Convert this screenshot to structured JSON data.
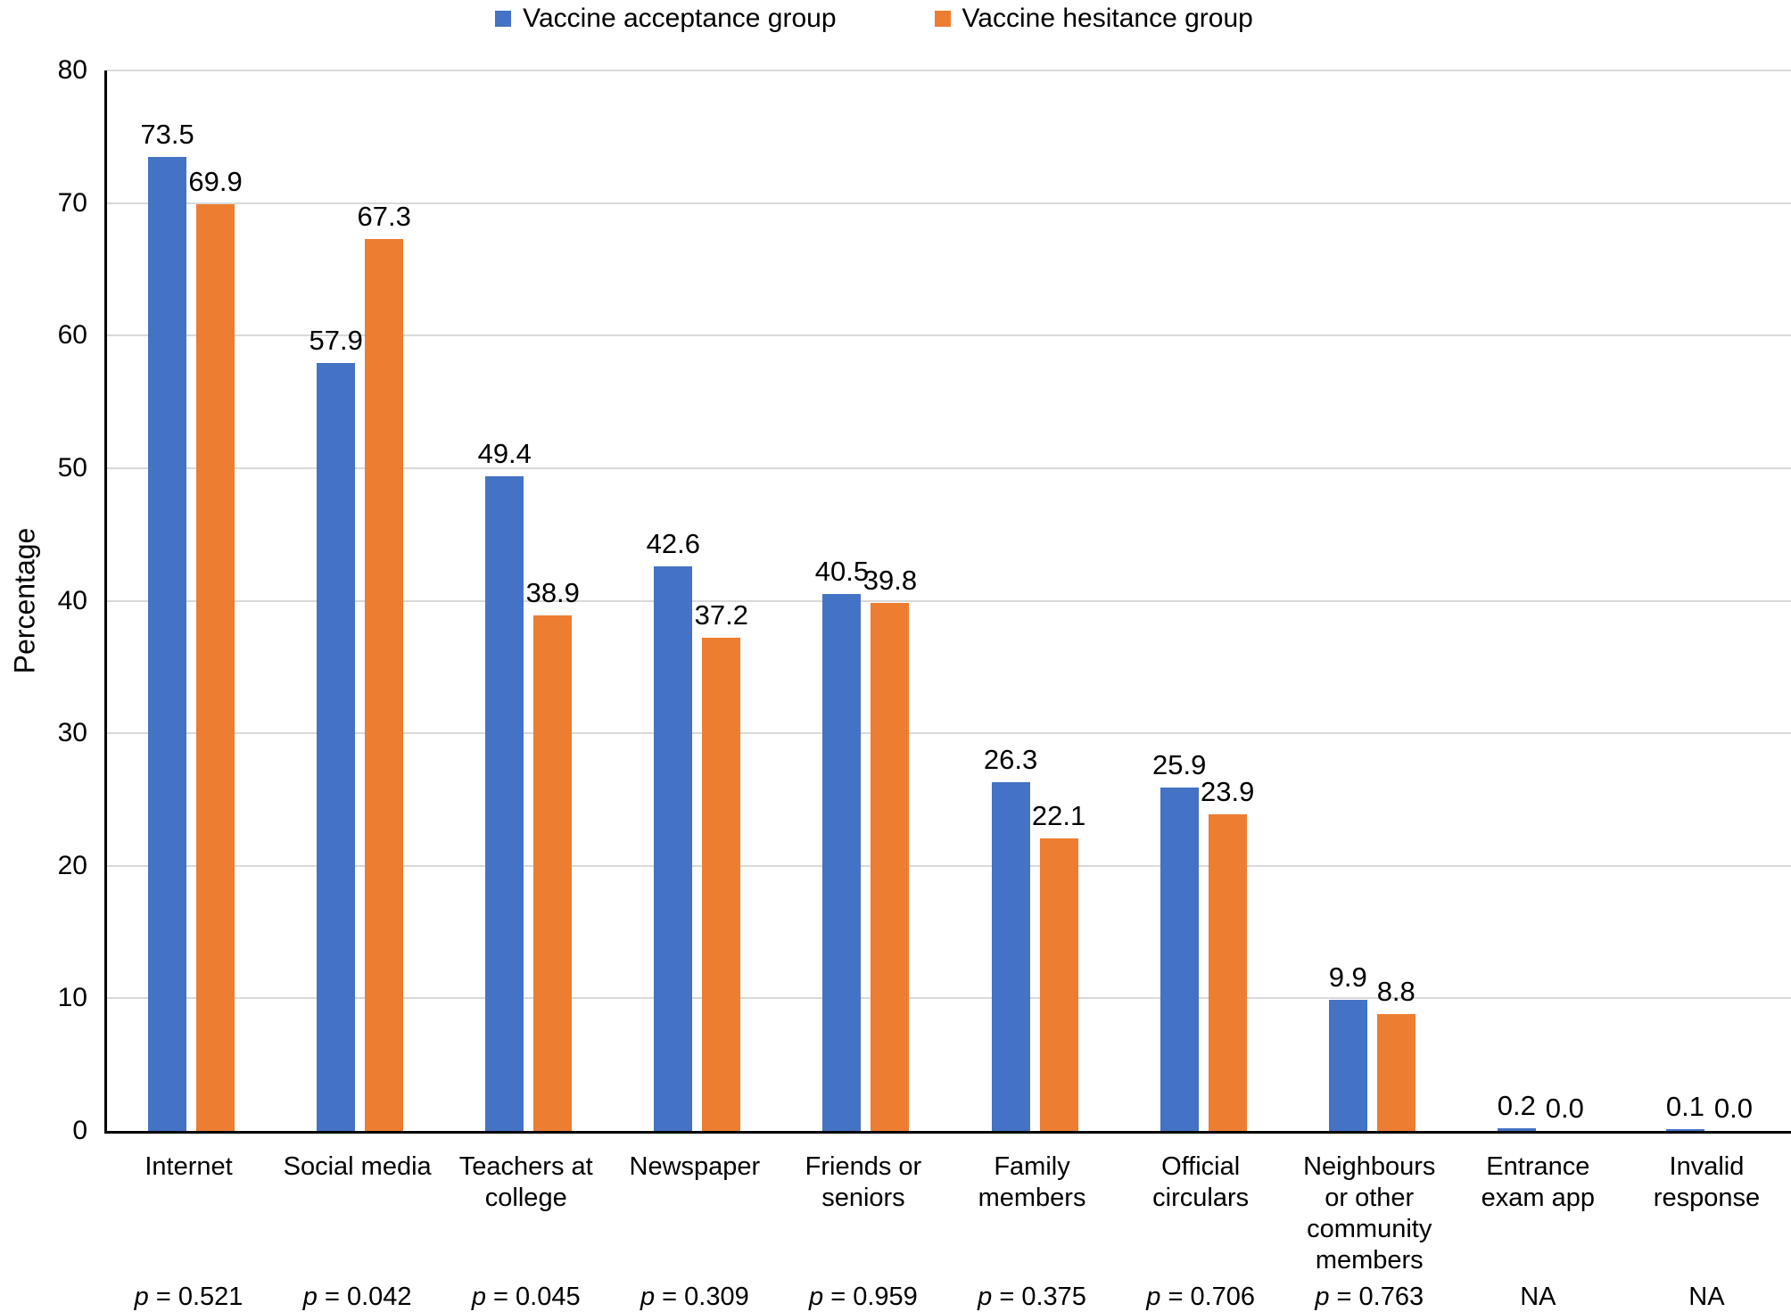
{
  "chart_data": {
    "type": "bar",
    "title": "",
    "xlabel": "",
    "ylabel": "Percentage",
    "ylim": [
      0,
      80
    ],
    "yticks": [
      0,
      10,
      20,
      30,
      40,
      50,
      60,
      70,
      80
    ],
    "grid": "horizontal",
    "legend_position": "top-center",
    "categories": [
      "Internet",
      "Social media",
      "Teachers at college",
      "Newspaper",
      "Friends or seniors",
      "Family members",
      "Official circulars",
      "Neighbours or other community members",
      "Entrance exam app",
      "Invalid response"
    ],
    "category_label_lines": [
      [
        "Internet"
      ],
      [
        "Social media"
      ],
      [
        "Teachers at",
        "college"
      ],
      [
        "Newspaper"
      ],
      [
        "Friends or",
        "seniors"
      ],
      [
        "Family",
        "members"
      ],
      [
        "Official",
        "circulars"
      ],
      [
        "Neighbours",
        "or other",
        "community",
        "members"
      ],
      [
        "Entrance",
        "exam app"
      ],
      [
        "Invalid",
        "response"
      ]
    ],
    "p_values": [
      "p = 0.521",
      "p = 0.042",
      "p = 0.045",
      "p = 0.309",
      "p = 0.959",
      "p = 0.375",
      "p = 0.706",
      "p = 0.763",
      "NA",
      "NA"
    ],
    "series": [
      {
        "name": "Vaccine acceptance group",
        "color": "#4472C4",
        "values": [
          73.5,
          57.9,
          49.4,
          42.6,
          40.5,
          26.3,
          25.9,
          9.9,
          0.2,
          0.1
        ]
      },
      {
        "name": "Vaccine hesitance group",
        "color": "#ED7D31",
        "values": [
          69.9,
          67.3,
          38.9,
          37.2,
          39.8,
          22.1,
          23.9,
          8.8,
          0.0,
          0.0
        ]
      }
    ],
    "colors": {
      "grid": "#d9d9d9",
      "axis": "#000000",
      "text": "#000000"
    }
  }
}
